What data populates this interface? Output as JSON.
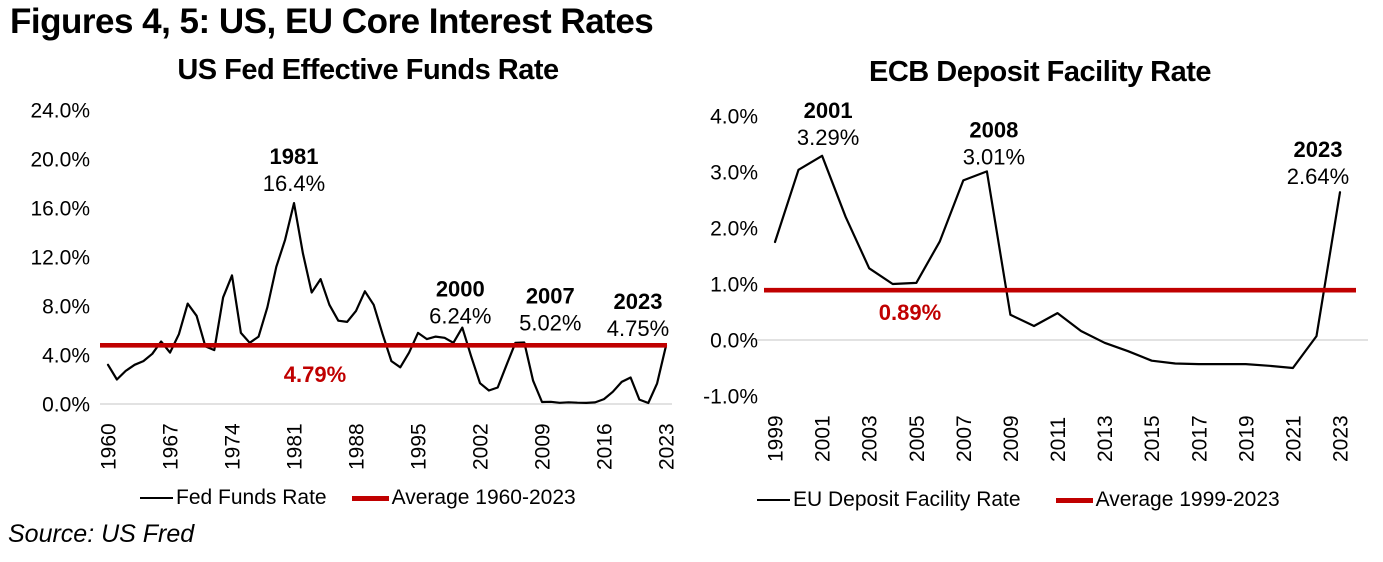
{
  "page": {
    "title": "Figures 4, 5: US, EU Core Interest Rates",
    "source": "Source: US Fred",
    "colors": {
      "accent_red": "#C00000",
      "line_black": "#000000",
      "gridline_gray": "#D9D9D9"
    }
  },
  "chart_data": [
    {
      "id": "fed",
      "type": "line",
      "title": "US Fed Effective Funds Rate",
      "x_range": [
        1960,
        2023
      ],
      "ylim": [
        0,
        24
      ],
      "grid": "zero-line-only",
      "legend_position": "bottom",
      "series": [
        {
          "name": "Fed Funds Rate",
          "color": "#000000",
          "values": [
            3.2,
            2.0,
            2.7,
            3.2,
            3.5,
            4.1,
            5.1,
            4.2,
            5.7,
            8.2,
            7.2,
            4.7,
            4.4,
            8.7,
            10.5,
            5.8,
            5.0,
            5.5,
            7.9,
            11.2,
            13.4,
            16.4,
            12.3,
            9.1,
            10.2,
            8.1,
            6.8,
            6.7,
            7.6,
            9.2,
            8.1,
            5.7,
            3.5,
            3.0,
            4.2,
            5.8,
            5.3,
            5.5,
            5.4,
            5.0,
            6.24,
            3.9,
            1.7,
            1.1,
            1.35,
            3.2,
            5.0,
            5.02,
            1.9,
            0.16,
            0.18,
            0.1,
            0.14,
            0.11,
            0.09,
            0.13,
            0.4,
            1.0,
            1.8,
            2.16,
            0.36,
            0.08,
            1.68,
            4.75
          ]
        }
      ],
      "average_line": {
        "value": 4.79,
        "label": "4.79%",
        "legend_label": "Average 1960-2023",
        "color": "#C00000"
      },
      "yticks": [
        {
          "v": 24,
          "label": "24.0%"
        },
        {
          "v": 20,
          "label": "20.0%"
        },
        {
          "v": 16,
          "label": "16.0%"
        },
        {
          "v": 12,
          "label": "12.0%"
        },
        {
          "v": 8,
          "label": "8.0%"
        },
        {
          "v": 4,
          "label": "4.0%"
        },
        {
          "v": 0,
          "label": "0.0%"
        }
      ],
      "xticks": [
        1960,
        1967,
        1974,
        1981,
        1988,
        1995,
        2002,
        2009,
        2016,
        2023
      ],
      "annotations": [
        {
          "year": 1981,
          "year_label": "1981",
          "value_label": "16.4%"
        },
        {
          "year": 2000,
          "year_label": "2000",
          "value_label": "6.24%"
        },
        {
          "year": 2007,
          "year_label": "2007",
          "value_label": "5.02%"
        },
        {
          "year": 2023,
          "year_label": "2023",
          "value_label": "4.75%"
        }
      ]
    },
    {
      "id": "ecb",
      "type": "line",
      "title": "ECB Deposit Facility Rate",
      "x_range": [
        1999,
        2023
      ],
      "ylim": [
        -1,
        4
      ],
      "grid": "zero-line-only",
      "legend_position": "bottom",
      "series": [
        {
          "name": "EU Deposit Facility Rate",
          "color": "#000000",
          "values": [
            1.75,
            3.04,
            3.29,
            2.2,
            1.28,
            1.0,
            1.02,
            1.76,
            2.85,
            3.01,
            0.45,
            0.25,
            0.48,
            0.16,
            -0.05,
            -0.2,
            -0.37,
            -0.42,
            -0.43,
            -0.43,
            -0.43,
            -0.46,
            -0.5,
            0.07,
            2.64
          ]
        }
      ],
      "average_line": {
        "value": 0.89,
        "label": "0.89%",
        "legend_label": "Average 1999-2023",
        "color": "#C00000"
      },
      "yticks": [
        {
          "v": 4,
          "label": "4.0%"
        },
        {
          "v": 3,
          "label": "3.0%"
        },
        {
          "v": 2,
          "label": "2.0%"
        },
        {
          "v": 1,
          "label": "1.0%"
        },
        {
          "v": 0,
          "label": "0.0%"
        },
        {
          "v": -1,
          "label": "-1.0%"
        }
      ],
      "xticks": [
        1999,
        2001,
        2003,
        2005,
        2007,
        2009,
        2011,
        2013,
        2015,
        2017,
        2019,
        2021,
        2023
      ],
      "annotations": [
        {
          "year": 2001,
          "year_label": "2001",
          "value_label": "3.29%"
        },
        {
          "year": 2008,
          "year_label": "2008",
          "value_label": "3.01%"
        },
        {
          "year": 2023,
          "year_label": "2023",
          "value_label": "2.64%"
        }
      ]
    }
  ]
}
